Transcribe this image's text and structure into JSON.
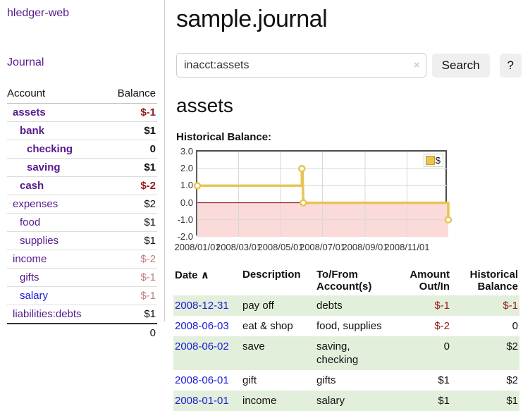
{
  "app": {
    "title": "hledger-web",
    "nav_journal": "Journal"
  },
  "sidebar": {
    "header": {
      "account": "Account",
      "balance": "Balance"
    },
    "accounts": [
      {
        "name": "assets",
        "balance": "$-1",
        "depth": 1,
        "bold": true,
        "link": "purple",
        "bstyle": "neg"
      },
      {
        "name": "bank",
        "balance": "$1",
        "depth": 2,
        "bold": true,
        "link": "purple",
        "bstyle": "pos"
      },
      {
        "name": "checking",
        "balance": "0",
        "depth": 3,
        "bold": true,
        "link": "purple",
        "bstyle": "pos"
      },
      {
        "name": "saving",
        "balance": "$1",
        "depth": 3,
        "bold": true,
        "link": "purple",
        "bstyle": "pos"
      },
      {
        "name": "cash",
        "balance": "$-2",
        "depth": 2,
        "bold": true,
        "link": "purple",
        "bstyle": "neg"
      },
      {
        "name": "expenses",
        "balance": "$2",
        "depth": 1,
        "bold": false,
        "link": "purple",
        "bstyle": "pos"
      },
      {
        "name": "food",
        "balance": "$1",
        "depth": 2,
        "bold": false,
        "link": "purple",
        "bstyle": "pos"
      },
      {
        "name": "supplies",
        "balance": "$1",
        "depth": 2,
        "bold": false,
        "link": "purple",
        "bstyle": "pos"
      },
      {
        "name": "income",
        "balance": "$-2",
        "depth": 1,
        "bold": false,
        "link": "purple",
        "bstyle": "negm"
      },
      {
        "name": "gifts",
        "balance": "$-1",
        "depth": 2,
        "bold": false,
        "link": "purple",
        "bstyle": "negm"
      },
      {
        "name": "salary",
        "balance": "$-1",
        "depth": 2,
        "bold": false,
        "link": "blue",
        "bstyle": "negm"
      },
      {
        "name": "liabilities:debts",
        "balance": "$1",
        "depth": 1,
        "bold": false,
        "link": "purple",
        "bstyle": "pos"
      }
    ],
    "total": "0"
  },
  "header": {
    "title": "sample.journal"
  },
  "search": {
    "value": "inacct:assets",
    "clear_icon": "×",
    "button_label": "Search",
    "help_label": "?"
  },
  "account_page": {
    "title": "assets",
    "chart_label": "Historical Balance:"
  },
  "chart_data": {
    "type": "line",
    "title": "Historical Balance:",
    "ylim": [
      -2,
      3
    ],
    "yticks": [
      "3.0",
      "2.0",
      "1.0",
      "0.0",
      "-1.0",
      "-2.0"
    ],
    "ygrid": [
      2,
      1,
      -1
    ],
    "x_range": [
      "2008-01-01",
      "2008-12-31"
    ],
    "xticks": [
      {
        "label": "2008/01/01",
        "date": "2008-01-01"
      },
      {
        "label": "2008/03/01",
        "date": "2008-03-01"
      },
      {
        "label": "2008/05/01",
        "date": "2008-05-01"
      },
      {
        "label": "2008/07/01",
        "date": "2008-07-01"
      },
      {
        "label": "2008/09/01",
        "date": "2008-09-01"
      },
      {
        "label": "2008/11/01",
        "date": "2008-11-01"
      }
    ],
    "series": [
      {
        "name": "$",
        "color": "#e7c454",
        "points": [
          {
            "x": "2008-01-01",
            "y": 1
          },
          {
            "x": "2008-06-01",
            "y": 1
          },
          {
            "x": "2008-06-01",
            "y": 2
          },
          {
            "x": "2008-06-02",
            "y": 2
          },
          {
            "x": "2008-06-03",
            "y": 0
          },
          {
            "x": "2008-12-31",
            "y": 0
          },
          {
            "x": "2008-12-31",
            "y": -1
          }
        ],
        "markers": [
          {
            "x": "2008-01-01",
            "y": 1
          },
          {
            "x": "2008-06-01",
            "y": 2
          },
          {
            "x": "2008-06-03",
            "y": 0
          },
          {
            "x": "2008-12-31",
            "y": -1
          }
        ]
      }
    ],
    "legend": {
      "label": "$",
      "position": "top-right"
    },
    "negative_fill": "#fadbd9",
    "zero_line_color": "#8b0000",
    "grid_color": "#d8d8d8"
  },
  "register": {
    "columns": {
      "date": "Date",
      "sort_icon": "∧",
      "description": "Description",
      "accounts": "To/From Account(s)",
      "amount": "Amount Out/In",
      "balance": "Historical Balance"
    },
    "rows": [
      {
        "date": "2008-12-31",
        "description": "pay off",
        "accounts": "debts",
        "amount": "$-1",
        "balance": "$-1",
        "amount_neg": true,
        "balance_neg": true,
        "shade": true
      },
      {
        "date": "2008-06-03",
        "description": "eat & shop",
        "accounts": "food, supplies",
        "amount": "$-2",
        "balance": "0",
        "amount_neg": true,
        "balance_neg": false,
        "shade": false
      },
      {
        "date": "2008-06-02",
        "description": "save",
        "accounts": "saving, checking",
        "amount": "0",
        "balance": "$2",
        "amount_neg": false,
        "balance_neg": false,
        "shade": true
      },
      {
        "date": "2008-06-01",
        "description": "gift",
        "accounts": "gifts",
        "amount": "$1",
        "balance": "$2",
        "amount_neg": false,
        "balance_neg": false,
        "shade": false
      },
      {
        "date": "2008-01-01",
        "description": "income",
        "accounts": "salary",
        "amount": "$1",
        "balance": "$1",
        "amount_neg": false,
        "balance_neg": false,
        "shade": true
      }
    ]
  }
}
